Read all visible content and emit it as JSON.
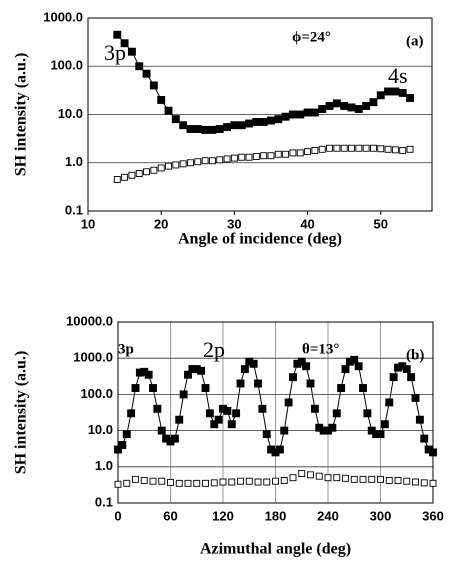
{
  "chart_data": [
    {
      "type": "line",
      "xlabel": "Angle of incidence (deg)",
      "ylabel": "SH intensity (a.u.)",
      "xlim": [
        10,
        57
      ],
      "xticks": [
        10,
        20,
        30,
        40,
        50
      ],
      "ylim": [
        0.1,
        1000
      ],
      "log_y": true,
      "grid": "y",
      "yticks": [
        0.1,
        {
          "value": 1,
          "label": "1.0"
        },
        {
          "value": 10,
          "label": "10.0"
        },
        {
          "value": 100,
          "label": "100.0"
        },
        {
          "value": 1000,
          "label": "1000.0"
        }
      ],
      "annotations": [
        "3p",
        "4s",
        "ϕ=24°",
        "(a)"
      ],
      "series": [
        {
          "marker": "filled",
          "color": "#000000",
          "x": [
            14,
            15,
            16,
            17,
            18,
            19,
            20,
            21,
            22,
            23,
            24,
            25,
            26,
            27,
            28,
            29,
            30,
            31,
            32,
            33,
            34,
            35,
            36,
            37,
            38,
            39,
            40,
            41,
            42,
            43,
            44,
            45,
            46,
            47,
            48,
            49,
            50,
            51,
            52,
            53,
            54
          ],
          "values": [
            450,
            300,
            200,
            100,
            70,
            40,
            20,
            12,
            8,
            6,
            5,
            5,
            4.8,
            4.8,
            5,
            5.5,
            6,
            6,
            6.5,
            7,
            7,
            7.5,
            8,
            9,
            10,
            10,
            11,
            11,
            13,
            15,
            17,
            15,
            14,
            13,
            15,
            18,
            25,
            30,
            30,
            28,
            22
          ]
        },
        {
          "marker": "open",
          "color": "#000000",
          "x": [
            14,
            15,
            16,
            17,
            18,
            19,
            20,
            21,
            22,
            23,
            24,
            25,
            26,
            27,
            28,
            29,
            30,
            31,
            32,
            33,
            34,
            35,
            36,
            37,
            38,
            39,
            40,
            41,
            42,
            43,
            44,
            45,
            46,
            47,
            48,
            49,
            50,
            51,
            52,
            53,
            54
          ],
          "values": [
            0.45,
            0.5,
            0.55,
            0.6,
            0.65,
            0.7,
            0.78,
            0.85,
            0.9,
            0.95,
            1.0,
            1.05,
            1.1,
            1.1,
            1.15,
            1.2,
            1.25,
            1.3,
            1.3,
            1.35,
            1.4,
            1.4,
            1.5,
            1.5,
            1.6,
            1.6,
            1.7,
            1.8,
            1.9,
            2.0,
            2.0,
            2.0,
            2.0,
            2.0,
            2.0,
            2.0,
            1.95,
            1.9,
            1.85,
            1.8,
            1.9
          ]
        }
      ]
    },
    {
      "type": "line",
      "xlabel": "Azimuthal angle (deg)",
      "ylabel": "SH intensity (a.u.)",
      "xlim": [
        0,
        360
      ],
      "xticks": [
        0,
        60,
        120,
        180,
        240,
        300,
        360
      ],
      "ylim": [
        0.1,
        10000
      ],
      "log_y": true,
      "grid": "both",
      "yticks": [
        0.1,
        {
          "value": 1,
          "label": "1.0"
        },
        {
          "value": 10,
          "label": "10.0"
        },
        {
          "value": 100,
          "label": "100.0"
        },
        {
          "value": 1000,
          "label": "1000.0"
        },
        {
          "value": 10000,
          "label": "10000.0"
        }
      ],
      "annotations": [
        "3p",
        "2p",
        "θ=13°",
        "(b)"
      ],
      "series": [
        {
          "marker": "filled",
          "color": "#000000",
          "x": [
            0,
            5,
            10,
            15,
            20,
            25,
            30,
            35,
            40,
            45,
            50,
            55,
            60,
            65,
            70,
            75,
            80,
            85,
            90,
            95,
            100,
            105,
            110,
            115,
            120,
            125,
            130,
            135,
            140,
            145,
            150,
            155,
            160,
            165,
            170,
            175,
            180,
            185,
            190,
            195,
            200,
            205,
            210,
            215,
            220,
            225,
            230,
            235,
            240,
            245,
            250,
            255,
            260,
            265,
            270,
            275,
            280,
            285,
            290,
            295,
            300,
            305,
            310,
            315,
            320,
            325,
            330,
            335,
            340,
            345,
            350,
            355,
            360
          ],
          "values": [
            3,
            4,
            8,
            30,
            150,
            400,
            420,
            350,
            150,
            40,
            10,
            6,
            5,
            6,
            20,
            100,
            350,
            500,
            500,
            450,
            150,
            30,
            15,
            20,
            40,
            35,
            15,
            30,
            200,
            500,
            800,
            700,
            200,
            40,
            8,
            3,
            2.5,
            3,
            10,
            60,
            300,
            700,
            800,
            600,
            200,
            40,
            12,
            10,
            10,
            12,
            30,
            150,
            500,
            800,
            900,
            600,
            150,
            30,
            10,
            8,
            8,
            15,
            60,
            300,
            550,
            600,
            500,
            300,
            80,
            20,
            6,
            3,
            2.5
          ]
        },
        {
          "marker": "open",
          "color": "#000000",
          "x": [
            0,
            10,
            20,
            30,
            40,
            50,
            60,
            70,
            80,
            90,
            100,
            110,
            120,
            130,
            140,
            150,
            160,
            170,
            180,
            190,
            200,
            210,
            220,
            230,
            240,
            250,
            260,
            270,
            280,
            290,
            300,
            310,
            320,
            330,
            340,
            350,
            360
          ],
          "values": [
            0.33,
            0.35,
            0.45,
            0.42,
            0.4,
            0.4,
            0.37,
            0.35,
            0.35,
            0.35,
            0.35,
            0.36,
            0.38,
            0.38,
            0.4,
            0.4,
            0.38,
            0.38,
            0.4,
            0.42,
            0.5,
            0.65,
            0.6,
            0.55,
            0.5,
            0.5,
            0.48,
            0.45,
            0.45,
            0.45,
            0.45,
            0.42,
            0.42,
            0.4,
            0.38,
            0.36,
            0.35
          ]
        }
      ]
    }
  ]
}
